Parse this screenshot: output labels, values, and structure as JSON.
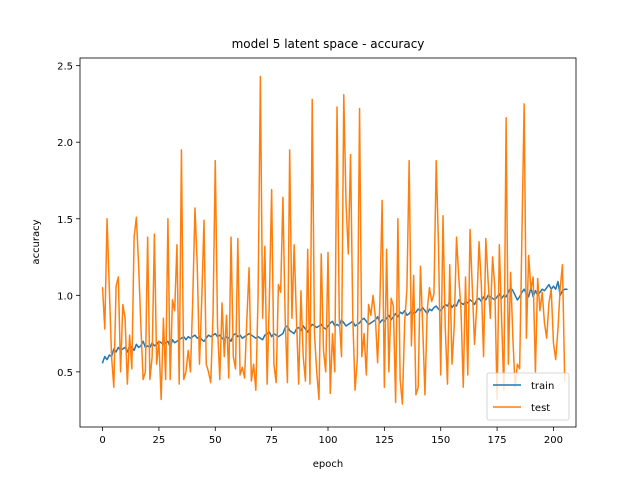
{
  "chart_data": {
    "type": "line",
    "title": "model 5 latent space - accuracy",
    "xlabel": "epoch",
    "ylabel": "accuracy",
    "xlim": [
      -10,
      210
    ],
    "ylim": [
      0.14,
      2.55
    ],
    "xticks": [
      0,
      25,
      50,
      75,
      100,
      125,
      150,
      175,
      200
    ],
    "yticks": [
      0.5,
      1.0,
      1.5,
      2.0,
      2.5
    ],
    "ytick_labels": [
      "0.5",
      "1.0",
      "1.5",
      "2.0",
      "2.5"
    ],
    "grid": false,
    "legend_position": "lower right",
    "series": [
      {
        "name": "train",
        "color": "#1f77b4",
        "values": [
          0.56,
          0.6,
          0.58,
          0.61,
          0.6,
          0.65,
          0.63,
          0.66,
          0.64,
          0.65,
          0.66,
          0.63,
          0.67,
          0.66,
          0.64,
          0.68,
          0.66,
          0.67,
          0.7,
          0.66,
          0.67,
          0.66,
          0.69,
          0.67,
          0.68,
          0.7,
          0.69,
          0.68,
          0.69,
          0.7,
          0.66,
          0.71,
          0.69,
          0.7,
          0.71,
          0.72,
          0.73,
          0.71,
          0.73,
          0.72,
          0.73,
          0.74,
          0.72,
          0.73,
          0.71,
          0.7,
          0.72,
          0.74,
          0.73,
          0.74,
          0.75,
          0.73,
          0.74,
          0.72,
          0.71,
          0.73,
          0.72,
          0.7,
          0.74,
          0.75,
          0.73,
          0.74,
          0.72,
          0.73,
          0.74,
          0.75,
          0.74,
          0.73,
          0.72,
          0.73,
          0.72,
          0.71,
          0.74,
          0.75,
          0.76,
          0.73,
          0.75,
          0.74,
          0.73,
          0.74,
          0.75,
          0.79,
          0.8,
          0.77,
          0.76,
          0.75,
          0.78,
          0.79,
          0.77,
          0.8,
          0.78,
          0.76,
          0.79,
          0.81,
          0.8,
          0.79,
          0.8,
          0.81,
          0.79,
          0.78,
          0.8,
          0.82,
          0.83,
          0.8,
          0.81,
          0.8,
          0.84,
          0.82,
          0.8,
          0.81,
          0.82,
          0.83,
          0.8,
          0.81,
          0.82,
          0.84,
          0.85,
          0.83,
          0.81,
          0.82,
          0.83,
          0.84,
          0.86,
          0.82,
          0.84,
          0.83,
          0.85,
          0.87,
          0.84,
          0.86,
          0.88,
          0.86,
          0.89,
          0.88,
          0.9,
          0.87,
          0.88,
          0.9,
          0.88,
          0.89,
          0.91,
          0.9,
          0.92,
          0.9,
          0.88,
          0.91,
          0.9,
          0.92,
          0.93,
          0.91,
          0.9,
          0.92,
          0.94,
          0.93,
          0.96,
          0.92,
          0.94,
          0.93,
          0.97,
          0.95,
          0.94,
          0.96,
          0.95,
          0.97,
          0.96,
          0.94,
          0.97,
          0.98,
          0.96,
          0.99,
          0.97,
          1.0,
          0.99,
          0.98,
          0.97,
          0.99,
          1.01,
          0.98,
          1.0,
          0.99,
          1.02,
          1.05,
          1.03,
          1.0,
          0.97,
          0.99,
          1.02,
          1.04,
          1.01,
          0.99,
          1.05,
          0.99,
          1.03,
          1.0,
          1.02,
          1.04,
          1.03,
          1.05,
          1.07,
          1.04,
          1.06,
          1.04,
          1.09,
          1.0,
          1.03,
          1.04,
          1.04
        ]
      },
      {
        "name": "test",
        "color": "#ff7f0e",
        "values": [
          1.05,
          0.78,
          1.5,
          1.05,
          0.6,
          0.4,
          1.06,
          1.12,
          0.5,
          0.94,
          0.85,
          0.42,
          0.74,
          0.52,
          1.38,
          1.51,
          1.2,
          0.8,
          0.45,
          0.5,
          1.38,
          0.45,
          0.6,
          1.4,
          0.55,
          0.7,
          0.32,
          0.85,
          0.45,
          1.5,
          0.45,
          0.97,
          0.9,
          1.33,
          0.42,
          1.95,
          0.45,
          0.5,
          0.64,
          0.5,
          0.97,
          1.57,
          1.2,
          0.55,
          0.97,
          1.49,
          0.55,
          0.5,
          0.43,
          0.87,
          1.88,
          0.8,
          0.45,
          0.95,
          0.6,
          0.87,
          0.46,
          1.38,
          0.6,
          0.52,
          1.37,
          0.48,
          0.53,
          0.46,
          0.84,
          1.18,
          0.44,
          0.55,
          0.38,
          1.0,
          2.43,
          0.85,
          1.32,
          0.42,
          0.98,
          1.69,
          0.55,
          0.43,
          1.07,
          1.02,
          1.64,
          0.85,
          0.43,
          1.95,
          0.85,
          1.33,
          0.85,
          0.42,
          1.03,
          0.6,
          0.44,
          1.3,
          0.42,
          2.28,
          0.75,
          0.5,
          0.32,
          1.27,
          0.64,
          0.5,
          1.28,
          0.36,
          0.75,
          0.5,
          2.23,
          0.85,
          0.6,
          2.31,
          1.6,
          1.27,
          1.92,
          0.85,
          0.38,
          0.58,
          2.22,
          0.6,
          0.75,
          0.48,
          0.94,
          0.87,
          1.0,
          0.86,
          0.56,
          0.95,
          1.62,
          0.4,
          1.3,
          0.5,
          0.98,
          0.93,
          0.3,
          1.5,
          0.45,
          0.29,
          0.82,
          1.04,
          1.88,
          0.67,
          1.13,
          0.35,
          0.4,
          1.19,
          0.8,
          0.35,
          0.9,
          1.05,
          0.96,
          1.01,
          1.88,
          1.33,
          0.48,
          1.52,
          0.79,
          0.42,
          1.2,
          0.55,
          0.8,
          1.38,
          1.12,
          0.9,
          0.4,
          1.12,
          0.48,
          1.43,
          1.05,
          0.68,
          0.94,
          1.35,
          1.07,
          0.6,
          1.37,
          1.1,
          0.85,
          1.25,
          1.05,
          0.32,
          1.33,
          0.85,
          0.38,
          2.16,
          0.55,
          1.15,
          0.72,
          0.4,
          0.55,
          0.52,
          1.38,
          2.25,
          0.72,
          1.26,
          1.04,
          1.12,
          0.5,
          1.11,
          0.9,
          1.02,
          0.82,
          0.72,
          0.95,
          1.04,
          0.69,
          0.58,
          0.78,
          1.05,
          1.2,
          0.44
        ]
      }
    ]
  }
}
